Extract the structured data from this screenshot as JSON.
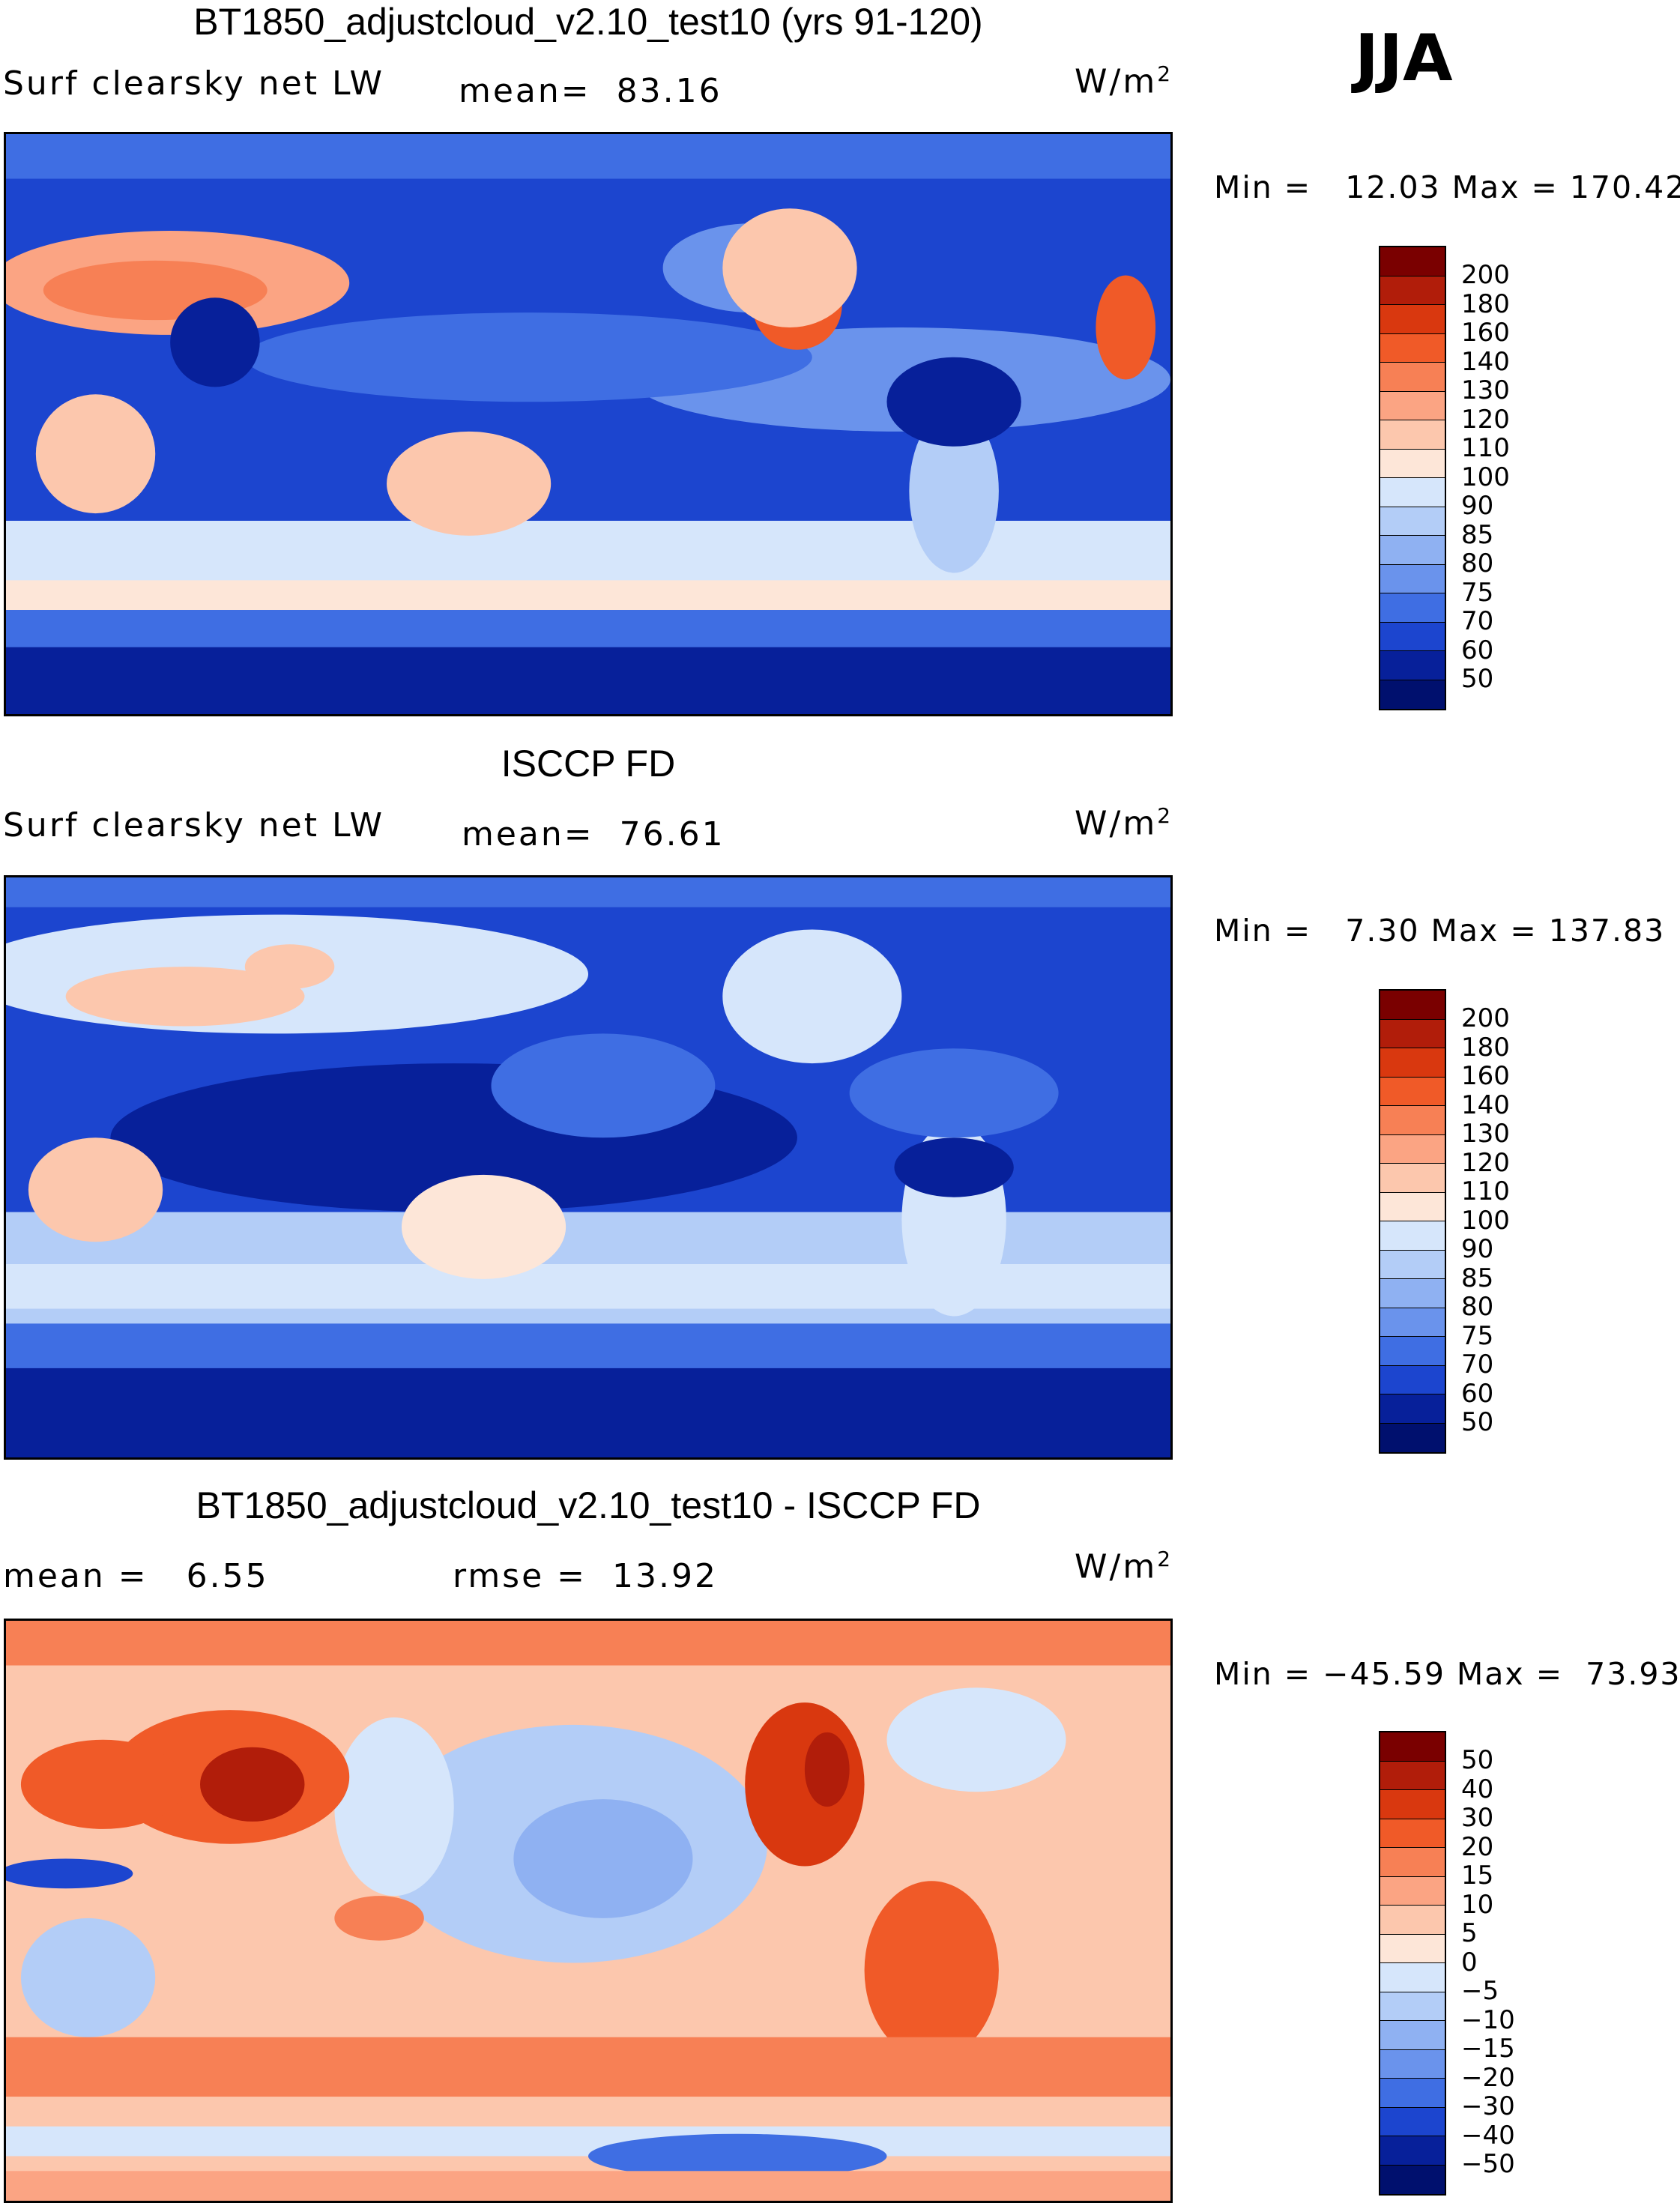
{
  "season": "JJA",
  "panels": [
    {
      "title": "BT1850_adjustcloud_v2.10_test10 (yrs 91-120)",
      "left_text": "Surf clearsky net LW",
      "mid_text": "mean=  83.16",
      "units": "W/m",
      "units_sup": "2",
      "minmax": "Min =   12.03 Max = 170.42",
      "colorbar_labels": [
        "200",
        "180",
        "160",
        "140",
        "130",
        "120",
        "110",
        "100",
        "90",
        "85",
        "80",
        "75",
        "70",
        "60",
        "50"
      ]
    },
    {
      "title": "ISCCP FD",
      "left_text": "Surf clearsky net LW",
      "mid_text": "mean=  76.61",
      "units": "W/m",
      "units_sup": "2",
      "minmax": "Min =   7.30 Max = 137.83",
      "colorbar_labels": [
        "200",
        "180",
        "160",
        "140",
        "130",
        "120",
        "110",
        "100",
        "90",
        "85",
        "80",
        "75",
        "70",
        "60",
        "50"
      ]
    },
    {
      "title": "BT1850_adjustcloud_v2.10_test10 - ISCCP FD",
      "left_text": "mean =   6.55",
      "mid_text": "rmse =  13.92",
      "units": "W/m",
      "units_sup": "2",
      "minmax": "Min = −45.59 Max =  73.93",
      "colorbar_labels": [
        "50",
        "40",
        "30",
        "20",
        "15",
        "10",
        "5",
        "0",
        "−5",
        "−10",
        "−15",
        "−20",
        "−30",
        "−40",
        "−50"
      ]
    }
  ],
  "colors": {
    "abs_scale": [
      "#7a0000",
      "#b11d0a",
      "#d9380f",
      "#f05a28",
      "#f78055",
      "#fba483",
      "#fcc7ad",
      "#fde6d8",
      "#d6e6fb",
      "#b3cdf7",
      "#8fb1f2",
      "#6a93ec",
      "#3f6ee3",
      "#1c45cf",
      "#07209a",
      "#00106e"
    ],
    "diff_scale": [
      "#7a0000",
      "#b11d0a",
      "#d9380f",
      "#f05a28",
      "#f78055",
      "#fba483",
      "#fcc7ad",
      "#fde6d8",
      "#d6e6fb",
      "#b3cdf7",
      "#8fb1f2",
      "#6a93ec",
      "#3f6ee3",
      "#1c45cf",
      "#07209a",
      "#00106e"
    ]
  }
}
